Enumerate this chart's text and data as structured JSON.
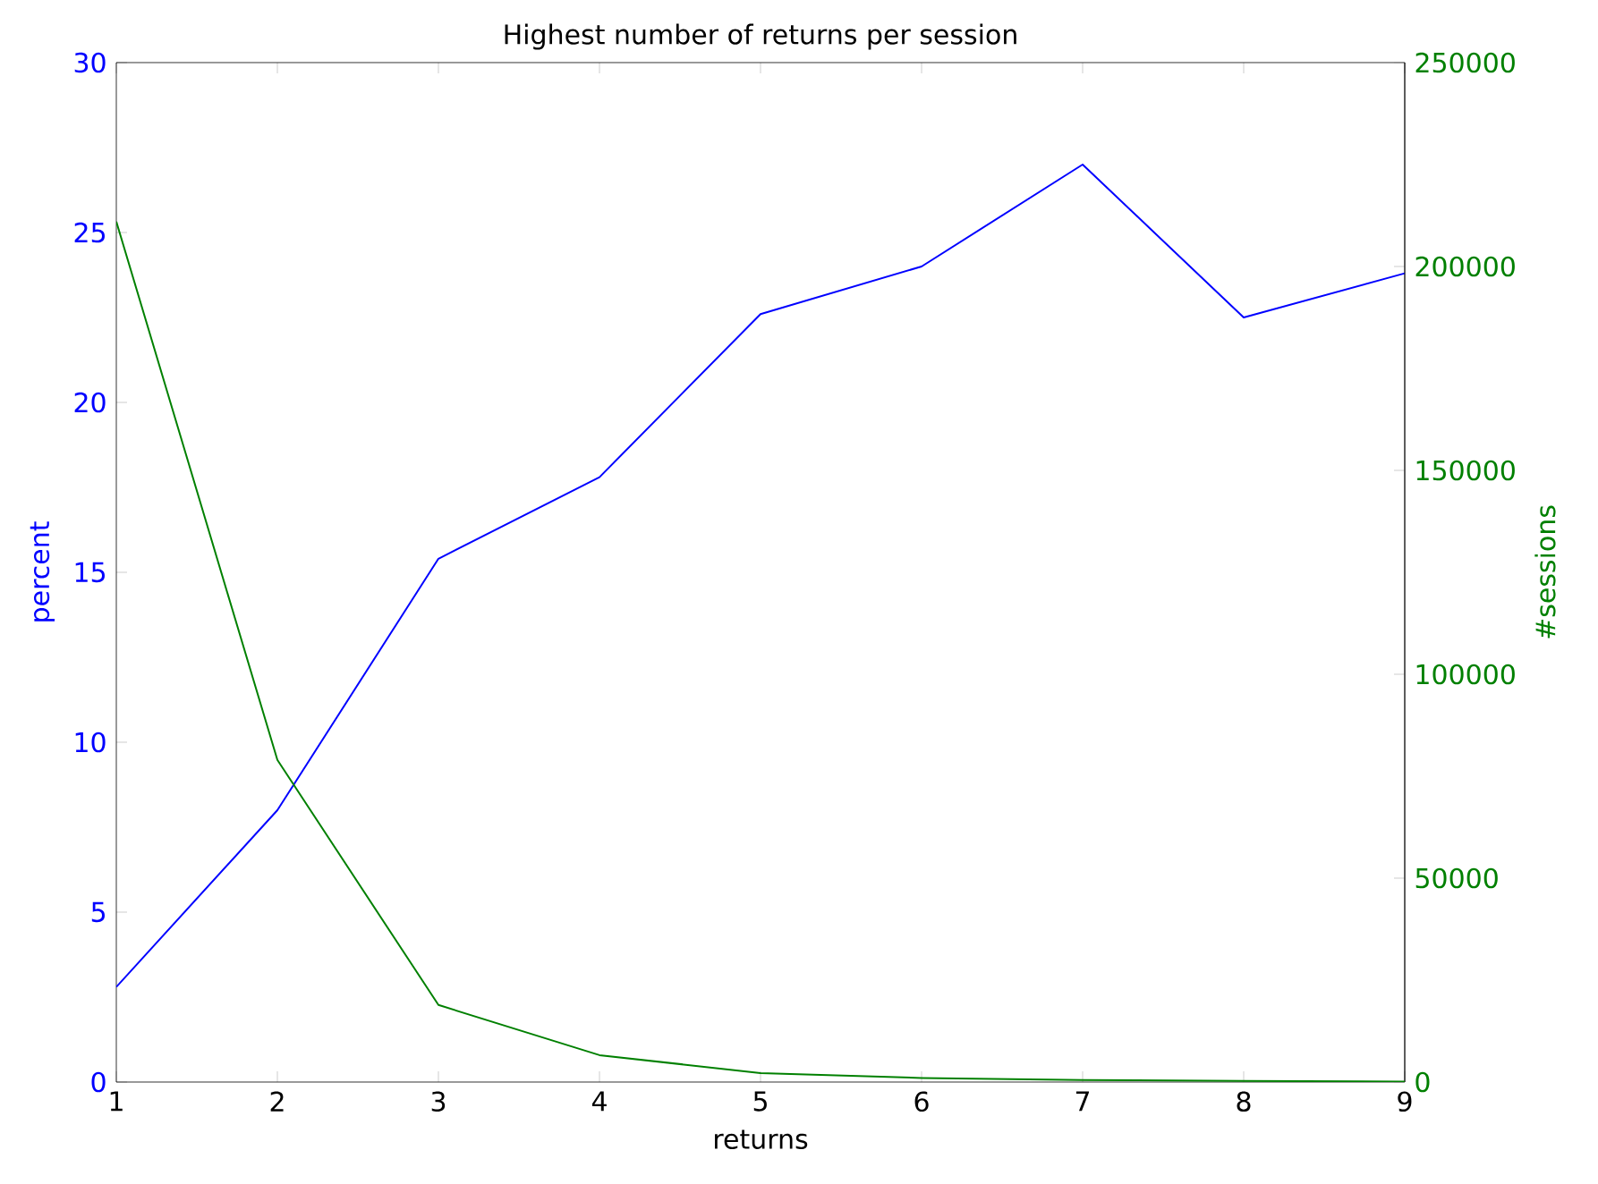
{
  "chart_data": {
    "type": "line",
    "title": "Highest number of returns per session",
    "xlabel": "returns",
    "ylabel": "percent",
    "y2label": "#sessions",
    "x": [
      1,
      2,
      3,
      4,
      5,
      6,
      7,
      8,
      9
    ],
    "xlim": [
      1,
      9
    ],
    "xticks": [
      1,
      2,
      3,
      4,
      5,
      6,
      7,
      8,
      9
    ],
    "ylim": [
      0,
      30
    ],
    "yticks": [
      0,
      5,
      10,
      15,
      20,
      25,
      30
    ],
    "y2lim": [
      0,
      250000
    ],
    "y2ticks": [
      0,
      50000,
      100000,
      150000,
      200000,
      250000
    ],
    "grid": false,
    "series": [
      {
        "color": "#0000ff",
        "values": [
          2.8,
          8.0,
          15.4,
          17.8,
          22.6,
          24.0,
          27.0,
          22.5,
          23.8
        ]
      },
      {
        "color": "#008000",
        "axis": "y2",
        "values": [
          211000,
          79000,
          18900,
          6600,
          2200,
          1000,
          500,
          300,
          100
        ]
      }
    ]
  }
}
